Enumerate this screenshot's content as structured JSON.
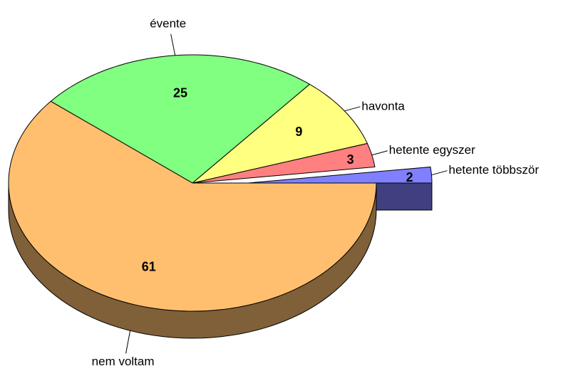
{
  "chart_data": {
    "type": "pie",
    "three_d": true,
    "categories": [
      "hetente többször",
      "hetente egyszer",
      "havonta",
      "évente",
      "nem voltam"
    ],
    "values": [
      2,
      3,
      9,
      25,
      61
    ],
    "colors": [
      "#8080ff",
      "#ff8080",
      "#ffff80",
      "#80ff80",
      "#ffbf6f"
    ],
    "exploded": [
      true,
      false,
      false,
      false,
      false
    ]
  }
}
